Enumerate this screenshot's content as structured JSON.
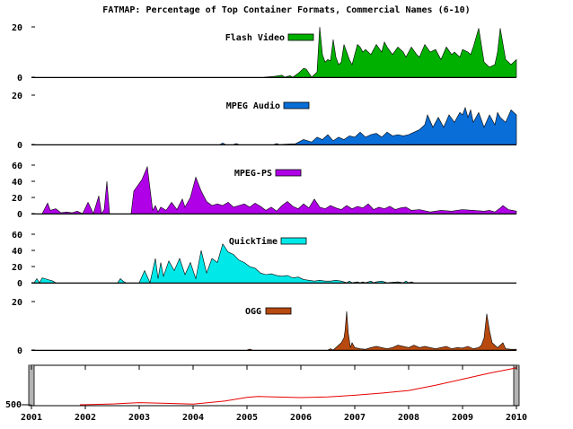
{
  "chart_data": {
    "type": "area",
    "title": "FATMAP: Percentage of Top Container Formats, Commercial Names (6-10)",
    "x_ticks": [
      "2001",
      "2002",
      "2003",
      "2004",
      "2005",
      "2006",
      "2007",
      "2008",
      "2009",
      "2010"
    ],
    "xlim": [
      2001,
      2010
    ],
    "panels": [
      {
        "name": "Flash Video",
        "color": "#00b000",
        "ylim": [
          0,
          20
        ],
        "yticks": [
          0,
          20
        ],
        "x": [
          2001.0,
          2005.3,
          2005.5,
          2005.65,
          2005.7,
          2005.8,
          2005.85,
          2005.95,
          2006.05,
          2006.1,
          2006.2,
          2006.3,
          2006.35,
          2006.4,
          2006.45,
          2006.5,
          2006.55,
          2006.6,
          2006.65,
          2006.7,
          2006.75,
          2006.8,
          2006.9,
          2006.95,
          2007.05,
          2007.1,
          2007.15,
          2007.2,
          2007.3,
          2007.4,
          2007.5,
          2007.55,
          2007.6,
          2007.7,
          2007.8,
          2007.9,
          2007.95,
          2008.05,
          2008.15,
          2008.2,
          2008.3,
          2008.4,
          2008.5,
          2008.6,
          2008.7,
          2008.8,
          2008.85,
          2008.95,
          2009.0,
          2009.1,
          2009.15,
          2009.2,
          2009.3,
          2009.4,
          2009.5,
          2009.6,
          2009.65,
          2009.7,
          2009.8,
          2009.9,
          2010.0
        ],
        "values": [
          0,
          0,
          0.3,
          0.8,
          0,
          0.6,
          0,
          1.5,
          3.5,
          3.2,
          0,
          2,
          20,
          9,
          6,
          7,
          6.5,
          15,
          8,
          5,
          6,
          13,
          7,
          5,
          13,
          12,
          10,
          11,
          9,
          13,
          10,
          14,
          12,
          9,
          12,
          10,
          8,
          12,
          9,
          8,
          13,
          10,
          11,
          7,
          12,
          9,
          10,
          8,
          11,
          10,
          9,
          12,
          19.5,
          6,
          4,
          5,
          10,
          19.5,
          7,
          5,
          7
        ]
      },
      {
        "name": "MPEG Audio",
        "color": "#0a6ed8",
        "ylim": [
          0,
          20
        ],
        "yticks": [
          0,
          20
        ],
        "x": [
          2001.0,
          2004.5,
          2004.55,
          2004.6,
          2004.75,
          2004.8,
          2004.85,
          2005.5,
          2005.55,
          2005.6,
          2005.9,
          2006.05,
          2006.2,
          2006.3,
          2006.4,
          2006.5,
          2006.6,
          2006.7,
          2006.8,
          2006.9,
          2007.0,
          2007.1,
          2007.2,
          2007.3,
          2007.4,
          2007.5,
          2007.6,
          2007.7,
          2007.8,
          2007.9,
          2008.0,
          2008.1,
          2008.2,
          2008.3,
          2008.35,
          2008.45,
          2008.55,
          2008.65,
          2008.75,
          2008.85,
          2008.95,
          2009.0,
          2009.05,
          2009.1,
          2009.15,
          2009.2,
          2009.3,
          2009.4,
          2009.5,
          2009.6,
          2009.65,
          2009.7,
          2009.8,
          2009.9,
          2010.0
        ],
        "values": [
          0,
          0,
          0.6,
          0,
          0,
          0.4,
          0,
          0,
          0.4,
          0,
          0.3,
          2,
          1,
          3,
          2,
          4,
          1.5,
          3,
          2,
          3.5,
          3,
          5,
          3,
          4,
          4.5,
          3,
          5,
          3.5,
          4,
          3.5,
          4,
          5,
          6,
          8,
          12,
          7,
          11,
          7,
          12,
          9,
          13,
          12,
          15,
          11,
          14,
          9,
          13,
          7,
          12,
          8,
          13,
          11,
          9,
          14,
          12
        ]
      },
      {
        "name": "MPEG-PS",
        "color": "#b000e8",
        "ylim": [
          0,
          60
        ],
        "yticks": [
          0,
          20,
          40,
          60
        ],
        "x": [
          2001.0,
          2001.2,
          2001.3,
          2001.35,
          2001.45,
          2001.55,
          2001.65,
          2001.75,
          2001.85,
          2001.95,
          2002.05,
          2002.15,
          2002.25,
          2002.3,
          2002.35,
          2002.4,
          2002.45,
          2002.5,
          2002.55,
          2002.85,
          2002.9,
          2003.05,
          2003.15,
          2003.25,
          2003.3,
          2003.35,
          2003.4,
          2003.5,
          2003.6,
          2003.7,
          2003.8,
          2003.85,
          2003.95,
          2004.05,
          2004.15,
          2004.25,
          2004.35,
          2004.45,
          2004.55,
          2004.65,
          2004.75,
          2004.85,
          2004.95,
          2005.05,
          2005.15,
          2005.25,
          2005.35,
          2005.45,
          2005.55,
          2005.65,
          2005.75,
          2005.85,
          2005.95,
          2006.05,
          2006.15,
          2006.25,
          2006.35,
          2006.45,
          2006.55,
          2006.65,
          2006.75,
          2006.85,
          2006.95,
          2007.05,
          2007.15,
          2007.25,
          2007.35,
          2007.45,
          2007.55,
          2007.65,
          2007.75,
          2007.85,
          2007.95,
          2008.05,
          2008.2,
          2008.4,
          2008.6,
          2008.8,
          2009.0,
          2009.2,
          2009.4,
          2009.5,
          2009.6,
          2009.7,
          2009.75,
          2009.85,
          2010.0
        ],
        "values": [
          0,
          0,
          13,
          4,
          6,
          1,
          2,
          1,
          3,
          0,
          14,
          0,
          22,
          0,
          5,
          40,
          0,
          0,
          0,
          0,
          28,
          42,
          58,
          4,
          10,
          2,
          8,
          4,
          14,
          5,
          18,
          8,
          20,
          45,
          28,
          15,
          10,
          12,
          10,
          14,
          8,
          10,
          12,
          8,
          13,
          9,
          4,
          8,
          3,
          10,
          15,
          9,
          6,
          12,
          7,
          18,
          8,
          6,
          10,
          7,
          5,
          10,
          6,
          9,
          7,
          12,
          5,
          8,
          6,
          9,
          5,
          7,
          8,
          4,
          5,
          2,
          4,
          3,
          5,
          4,
          3,
          4,
          2,
          7,
          10,
          5,
          3
        ]
      },
      {
        "name": "QuickTime",
        "color": "#00e8e8",
        "ylim": [
          0,
          60
        ],
        "yticks": [
          0,
          20,
          40,
          60
        ],
        "x": [
          2001.0,
          2001.05,
          2001.1,
          2001.15,
          2001.2,
          2001.3,
          2001.4,
          2001.45,
          2002.6,
          2002.65,
          2002.7,
          2002.75,
          2003.0,
          2003.1,
          2003.2,
          2003.3,
          2003.35,
          2003.4,
          2003.45,
          2003.55,
          2003.65,
          2003.75,
          2003.85,
          2003.95,
          2004.05,
          2004.15,
          2004.25,
          2004.35,
          2004.45,
          2004.55,
          2004.65,
          2004.75,
          2004.85,
          2004.95,
          2005.05,
          2005.15,
          2005.25,
          2005.35,
          2005.45,
          2005.55,
          2005.65,
          2005.75,
          2005.85,
          2005.95,
          2006.05,
          2006.15,
          2006.25,
          2006.35,
          2006.45,
          2006.55,
          2006.65,
          2006.75,
          2006.85,
          2006.9,
          2006.95,
          2007.05,
          2007.1,
          2007.15,
          2007.2,
          2007.3,
          2007.35,
          2007.4,
          2007.5,
          2007.6,
          2007.8,
          2007.9,
          2007.95,
          2008.0,
          2008.05,
          2008.1,
          2008.15,
          2010.0
        ],
        "values": [
          0,
          0,
          5,
          0,
          6,
          4,
          2,
          0,
          0,
          5,
          2,
          0,
          0,
          15,
          0,
          30,
          5,
          25,
          8,
          27,
          15,
          30,
          10,
          25,
          5,
          40,
          12,
          30,
          25,
          48,
          38,
          35,
          28,
          25,
          20,
          18,
          12,
          10,
          11,
          9,
          8,
          9,
          6,
          7,
          4,
          3,
          2,
          3,
          2,
          2,
          3,
          2,
          0,
          2,
          0,
          1,
          0,
          1,
          0,
          2,
          0,
          1,
          2,
          0,
          1,
          0,
          2,
          0,
          1,
          0,
          0,
          0
        ]
      },
      {
        "name": "OGG",
        "color": "#b84a10",
        "ylim": [
          0,
          20
        ],
        "yticks": [
          0,
          20
        ],
        "x": [
          2001.0,
          2005.0,
          2005.05,
          2005.1,
          2006.5,
          2006.55,
          2006.6,
          2006.7,
          2006.75,
          2006.8,
          2006.82,
          2006.85,
          2006.88,
          2006.92,
          2006.95,
          2007.0,
          2007.1,
          2007.2,
          2007.3,
          2007.4,
          2007.5,
          2007.6,
          2007.7,
          2007.8,
          2007.9,
          2008.0,
          2008.1,
          2008.2,
          2008.3,
          2008.4,
          2008.5,
          2008.6,
          2008.7,
          2008.8,
          2008.9,
          2009.0,
          2009.1,
          2009.2,
          2009.3,
          2009.35,
          2009.4,
          2009.45,
          2009.5,
          2009.55,
          2009.6,
          2009.65,
          2009.7,
          2009.75,
          2009.8,
          2009.9,
          2010.0
        ],
        "values": [
          0,
          0,
          0.4,
          0,
          0,
          0.5,
          0,
          2,
          3,
          5,
          8,
          16,
          7,
          1,
          3,
          1,
          0.5,
          0.3,
          1,
          1.5,
          1,
          0.5,
          1,
          2,
          1.5,
          1,
          2,
          1,
          1.5,
          1,
          0.5,
          1,
          1.5,
          0.5,
          1,
          0.8,
          1.5,
          0.5,
          1,
          2,
          5,
          15,
          8,
          3,
          2,
          1,
          2,
          3,
          0.5,
          0.3,
          0.3
        ]
      }
    ],
    "overview": {
      "type": "line",
      "color": "#e80000",
      "ytick_label": "500",
      "x": [
        2001.9,
        2002.1,
        2002.5,
        2003.0,
        2003.5,
        2004.0,
        2004.2,
        2004.6,
        2005.0,
        2005.2,
        2005.5,
        2006.0,
        2006.5,
        2007.0,
        2007.5,
        2008.0,
        2008.5,
        2009.0,
        2009.5,
        2010.0
      ],
      "values": [
        505,
        507,
        515,
        530,
        522,
        513,
        525,
        550,
        590,
        600,
        595,
        588,
        595,
        615,
        640,
        670,
        730,
        800,
        870,
        930
      ]
    }
  }
}
